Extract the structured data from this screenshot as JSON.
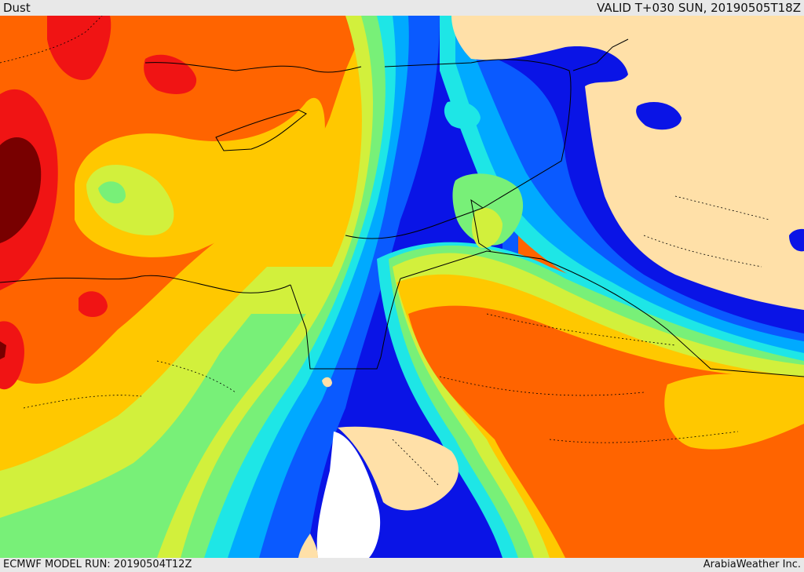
{
  "header": {
    "title": "Dust",
    "valid": "VALID T+030 SUN, 20190505T18Z"
  },
  "footer": {
    "model_run": "ECMWF MODEL RUN: 20190504T12Z",
    "credit": "ArabiaWeather Inc."
  },
  "palette": {
    "land_no_dust": "#ffe0a8",
    "sea_no_dust": "#ffffff",
    "blue_dark": "#0a14e6",
    "blue": "#0a5aff",
    "azure": "#00aaff",
    "cyan": "#1ee6e6",
    "green": "#78f078",
    "yellow_green": "#d2f03c",
    "yellow": "#ffc800",
    "orange": "#ff8c00",
    "orange_red": "#ff6400",
    "red": "#f01414",
    "dark_red": "#780000",
    "boundary": "#000000"
  }
}
